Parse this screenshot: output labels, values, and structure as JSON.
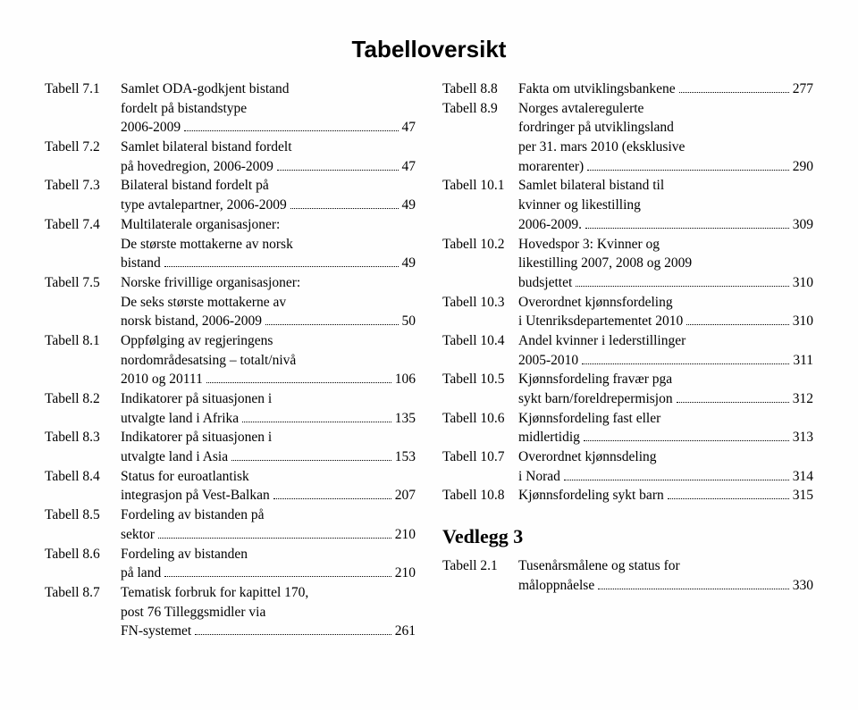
{
  "title": "Tabelloversikt",
  "leftEntries": [
    {
      "label": "Tabell 7.1",
      "lines": [
        "Samlet ODA-godkjent bistand",
        "fordelt på bistandstype"
      ],
      "last": "2006-2009",
      "page": "47"
    },
    {
      "label": "Tabell 7.2",
      "lines": [
        "Samlet bilateral bistand fordelt"
      ],
      "last": "på hovedregion, 2006-2009",
      "page": "47"
    },
    {
      "label": "Tabell 7.3",
      "lines": [
        "Bilateral bistand fordelt på"
      ],
      "last": "type avtalepartner, 2006-2009",
      "page": "49"
    },
    {
      "label": "Tabell 7.4",
      "lines": [
        "Multilaterale organisasjoner:",
        "De største mottakerne av norsk"
      ],
      "last": "bistand",
      "page": "49"
    },
    {
      "label": "Tabell 7.5",
      "lines": [
        "Norske frivillige organisasjoner:",
        "De seks største mottakerne av"
      ],
      "last": "norsk bistand, 2006-2009",
      "page": "50"
    },
    {
      "label": "Tabell 8.1",
      "lines": [
        "Oppfølging av regjeringens",
        "nordområdesatsing – totalt/nivå"
      ],
      "last": "2010 og 20111",
      "page": "106"
    },
    {
      "label": "Tabell 8.2",
      "lines": [
        "Indikatorer på situasjonen i"
      ],
      "last": "utvalgte land i Afrika",
      "page": "135"
    },
    {
      "label": "Tabell 8.3",
      "lines": [
        "Indikatorer på situasjonen i"
      ],
      "last": "utvalgte land i Asia",
      "page": "153"
    },
    {
      "label": "Tabell 8.4",
      "lines": [
        "Status for euroatlantisk"
      ],
      "last": "integrasjon på Vest-Balkan",
      "page": "207"
    },
    {
      "label": "Tabell 8.5",
      "lines": [
        "Fordeling av bistanden på"
      ],
      "last": "sektor",
      "page": "210"
    },
    {
      "label": "Tabell 8.6",
      "lines": [
        "Fordeling av bistanden"
      ],
      "last": "på land",
      "page": "210"
    },
    {
      "label": "Tabell 8.7",
      "lines": [
        "Tematisk forbruk for kapittel 170,",
        "post 76 Tilleggsmidler via"
      ],
      "last": "FN-systemet",
      "page": "261"
    }
  ],
  "rightEntries": [
    {
      "label": "Tabell 8.8",
      "lines": [],
      "last": "Fakta om utviklingsbankene",
      "page": "277"
    },
    {
      "label": "Tabell 8.9",
      "lines": [
        "Norges avtaleregulerte",
        "fordringer på utviklingsland",
        "per 31. mars 2010 (eksklusive"
      ],
      "last": "morarenter)",
      "page": "290"
    },
    {
      "label": "Tabell 10.1",
      "lines": [
        "Samlet bilateral bistand til",
        "kvinner og likestilling"
      ],
      "last": "2006-2009.",
      "page": "309"
    },
    {
      "label": "Tabell 10.2",
      "lines": [
        "Hovedspor 3: Kvinner og",
        "likestilling 2007, 2008 og 2009"
      ],
      "last": "budsjettet",
      "page": "310"
    },
    {
      "label": "Tabell 10.3",
      "lines": [
        "Overordnet kjønnsfordeling"
      ],
      "last": "i Utenriksdepartementet 2010",
      "page": "310"
    },
    {
      "label": "Tabell 10.4",
      "lines": [
        "Andel kvinner i lederstillinger"
      ],
      "last": "2005-2010",
      "page": "311"
    },
    {
      "label": "Tabell 10.5",
      "lines": [
        "Kjønnsfordeling fravær pga"
      ],
      "last": "sykt barn/foreldrepermisjon",
      "page": "312"
    },
    {
      "label": "Tabell 10.6",
      "lines": [
        "Kjønnsfordeling fast eller"
      ],
      "last": "midlertidig",
      "page": "313"
    },
    {
      "label": "Tabell 10.7",
      "lines": [
        "Overordnet kjønnsdeling"
      ],
      "last": "i Norad",
      "page": "314"
    },
    {
      "label": "Tabell 10.8",
      "lines": [],
      "last": "Kjønnsfordeling sykt barn",
      "page": "315"
    }
  ],
  "vedleggHeading": "Vedlegg 3",
  "vedleggEntries": [
    {
      "label": "Tabell 2.1",
      "lines": [
        "Tusenårsmålene og status for"
      ],
      "last": "måloppnåelse",
      "page": "330"
    }
  ]
}
